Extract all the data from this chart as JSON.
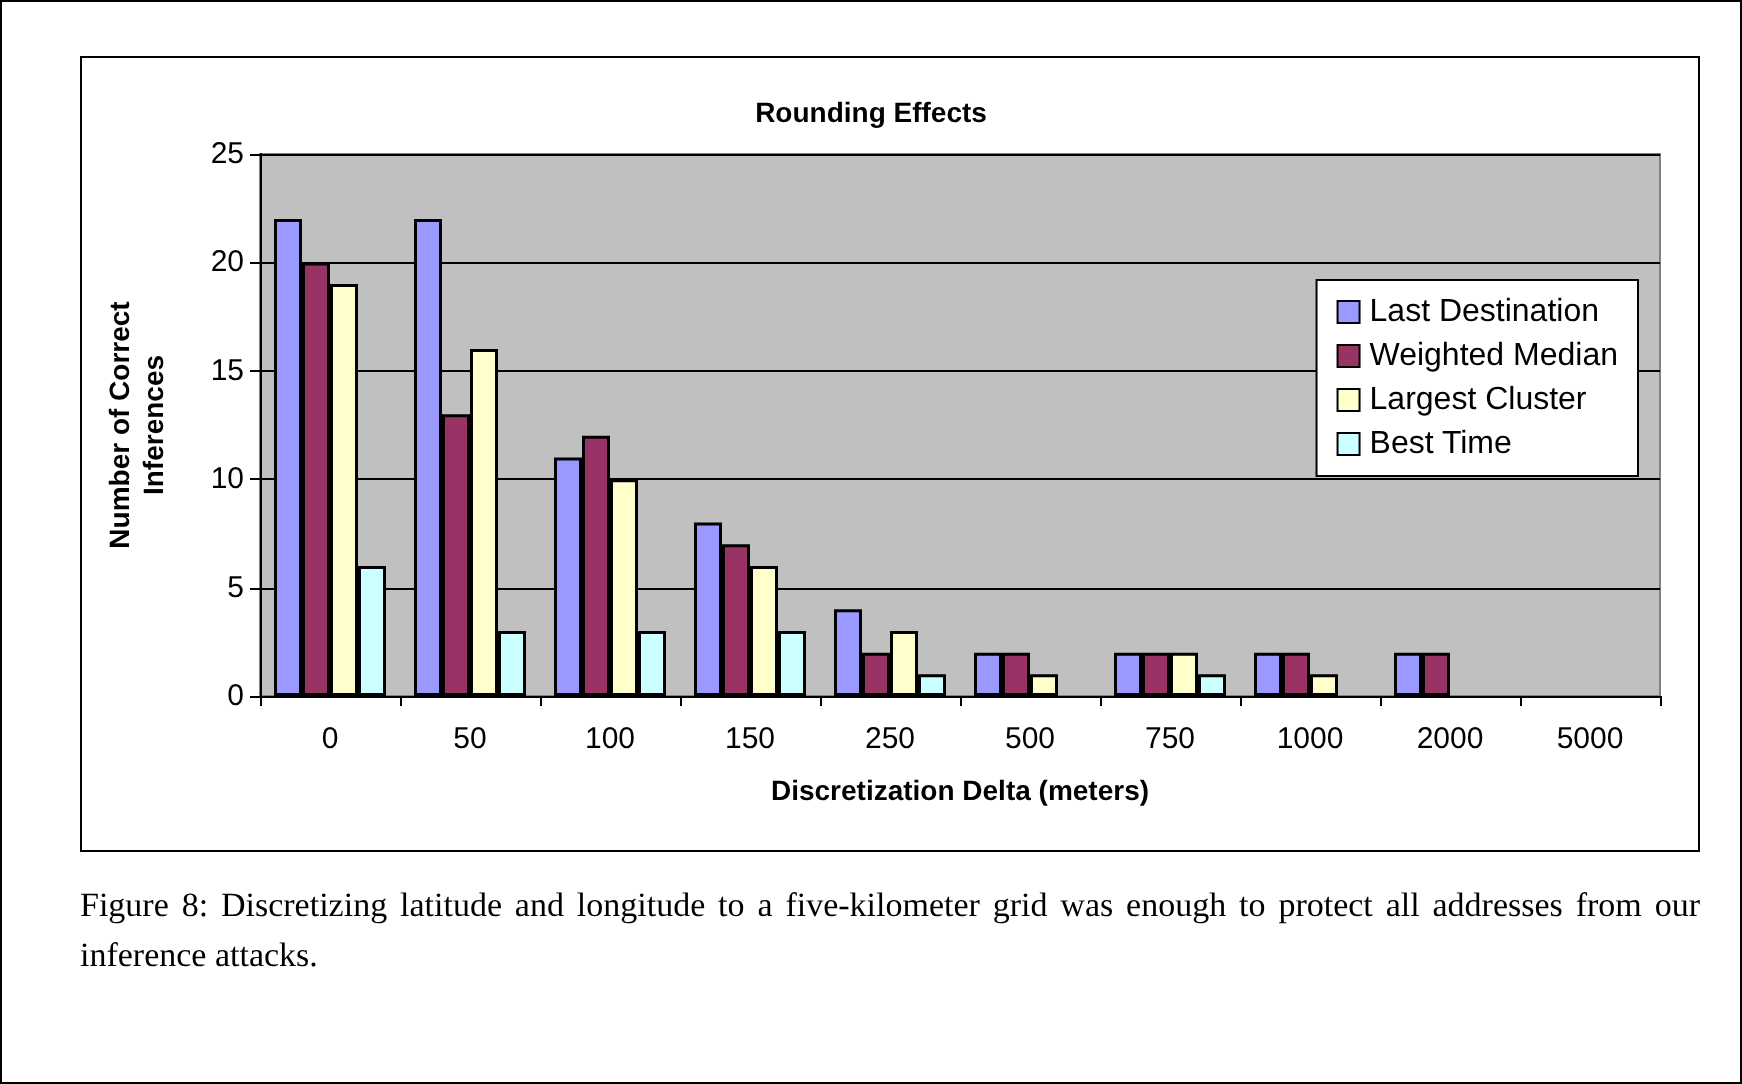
{
  "chart_data": {
    "type": "bar",
    "title": "Rounding Effects",
    "xlabel": "Discretization Delta (meters)",
    "ylabel": "Number of Correct\nInferences",
    "categories": [
      "0",
      "50",
      "100",
      "150",
      "250",
      "500",
      "750",
      "1000",
      "2000",
      "5000"
    ],
    "series": [
      {
        "name": "Last Destination",
        "color": "#9999ff",
        "values": [
          22,
          22,
          11,
          8,
          4,
          2,
          2,
          2,
          2,
          0
        ]
      },
      {
        "name": "Weighted Median",
        "color": "#993366",
        "values": [
          20,
          13,
          12,
          7,
          2,
          2,
          2,
          2,
          2,
          0
        ]
      },
      {
        "name": "Largest Cluster",
        "color": "#ffffcc",
        "values": [
          19,
          16,
          10,
          6,
          3,
          1,
          2,
          1,
          0,
          0
        ]
      },
      {
        "name": "Best Time",
        "color": "#ccffff",
        "values": [
          6,
          3,
          3,
          3,
          1,
          0,
          1,
          0,
          0,
          0
        ]
      }
    ],
    "ylim": [
      0,
      25
    ],
    "yticks": [
      0,
      5,
      10,
      15,
      20,
      25
    ],
    "grid": "y",
    "legend": "top right",
    "annotations": [
      "Figure 8: Discretizing latitude and longitude to a five-kilometer grid was enough to protect all addresses from our inference attacks."
    ]
  }
}
